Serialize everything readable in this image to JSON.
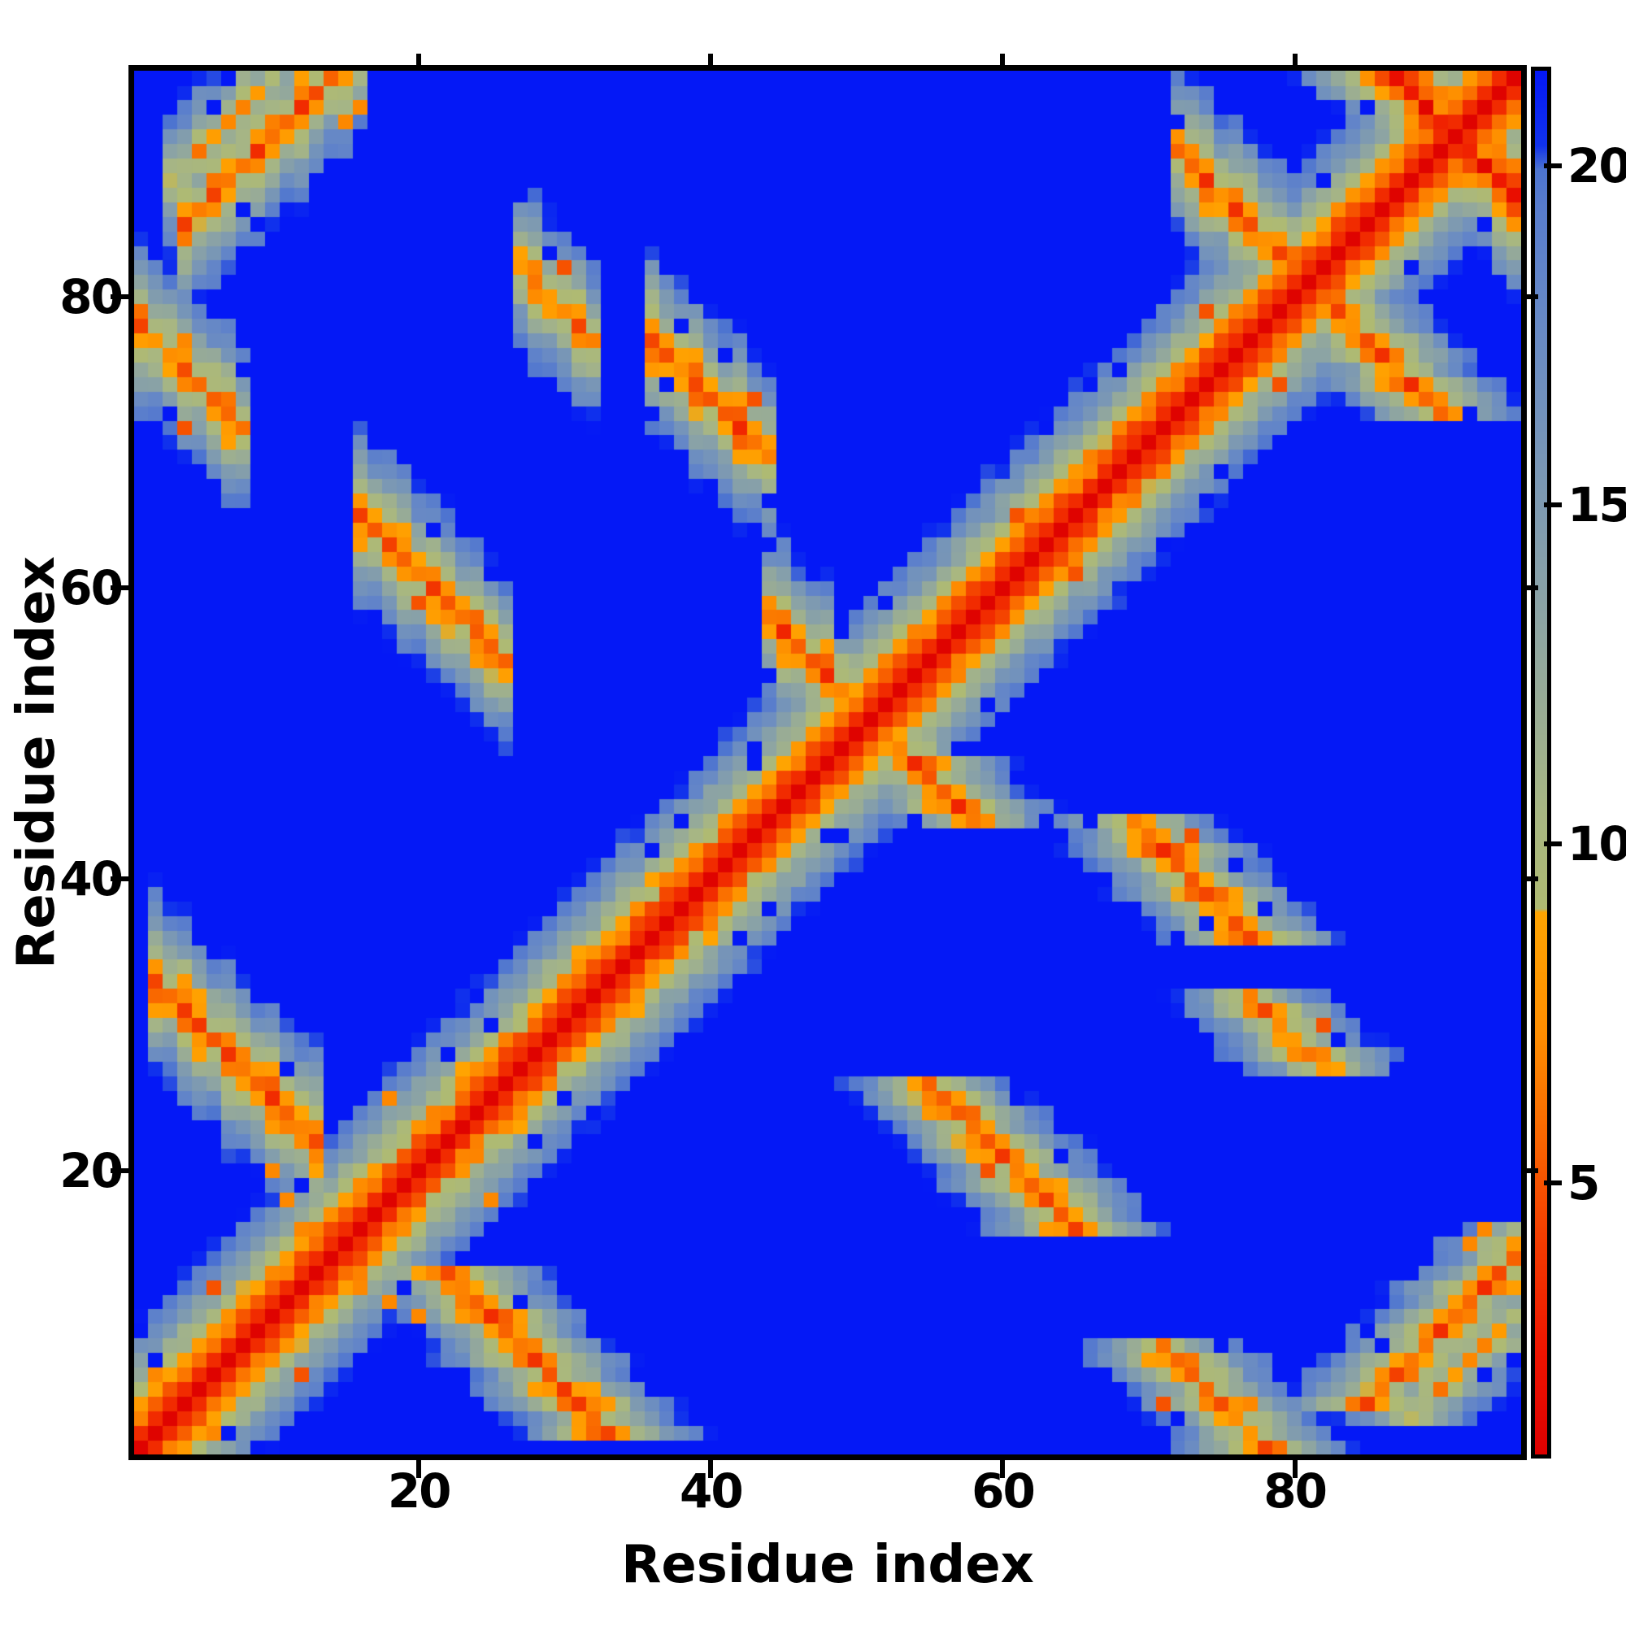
{
  "figure": {
    "background": "#ffffff",
    "axis_color": "#000000"
  },
  "chart_data": {
    "type": "heatmap",
    "title": "",
    "xlabel": "Residue index",
    "ylabel": "Residue index",
    "n_residues": 95,
    "x_range": [
      1,
      95
    ],
    "y_range": [
      1,
      95
    ],
    "x_ticks": [
      20,
      40,
      60,
      80
    ],
    "y_ticks": [
      20,
      40,
      60,
      80
    ],
    "grid": false,
    "colorbar": {
      "position": "right",
      "vmin": 1.0,
      "vmax": 21.4,
      "ticks": [
        5,
        10,
        15,
        20
      ]
    },
    "colormap_stops": [
      [
        1.0,
        "#dd0000"
      ],
      [
        2.5,
        "#ee1400"
      ],
      [
        4.0,
        "#f23800"
      ],
      [
        5.0,
        "#f65200"
      ],
      [
        6.0,
        "#fa6f00"
      ],
      [
        7.2,
        "#fe8d00"
      ],
      [
        9.0,
        "#ffa401"
      ],
      [
        9.05,
        "#afba72"
      ],
      [
        10.5,
        "#a7b683"
      ],
      [
        12.0,
        "#99ac95"
      ],
      [
        13.5,
        "#8ba3a5"
      ],
      [
        15.0,
        "#7e9ab1"
      ],
      [
        16.5,
        "#7191bd"
      ],
      [
        18.0,
        "#6587c7"
      ],
      [
        19.4,
        "#587ccd"
      ],
      [
        19.95,
        "#4d74d0"
      ],
      [
        20.3,
        "#1133ec"
      ],
      [
        21.4,
        "#0418f6"
      ]
    ],
    "distance_model": {
      "background": 26,
      "locality": {
        "base": 1.2,
        "slope": 2.25
      },
      "streak_wobble": 1.3,
      "cross_slope": 2.5,
      "cross_reach": 8,
      "contact_features": [
        {
          "type": "anti",
          "a": [
            2,
            13
          ],
          "b": 33,
          "d": 5.0
        },
        {
          "type": "anti",
          "a": [
            16,
            26
          ],
          "b": 65,
          "d": 5.2
        },
        {
          "type": "anti",
          "a": [
            36,
            44
          ],
          "b": 77,
          "d": 5.4
        },
        {
          "type": "par",
          "a": [
            4,
            16
          ],
          "b": 85,
          "d": 5.6
        },
        {
          "type": "anti",
          "a": [
            72,
            80
          ],
          "b": 90,
          "d": 5.2
        },
        {
          "type": "anti",
          "a": [
            1,
            8
          ],
          "b": 78,
          "d": 6.0
        },
        {
          "type": "anti",
          "a": [
            44,
            52
          ],
          "b": 58,
          "d": 5.5
        },
        {
          "type": "anti",
          "a": [
            27,
            32
          ],
          "b": 82,
          "d": 6.5
        },
        {
          "type": "anti",
          "a": [
            87,
            95
          ],
          "b": 95,
          "d": 3.5
        },
        {
          "type": "par",
          "a": [
            3,
            10
          ],
          "b": 88,
          "d": 8.5
        }
      ],
      "noise": {
        "seed": 7,
        "amplitude": 1.3,
        "blue_speckle_p": 0.05,
        "orange_speckle_p": 0.022
      }
    }
  }
}
